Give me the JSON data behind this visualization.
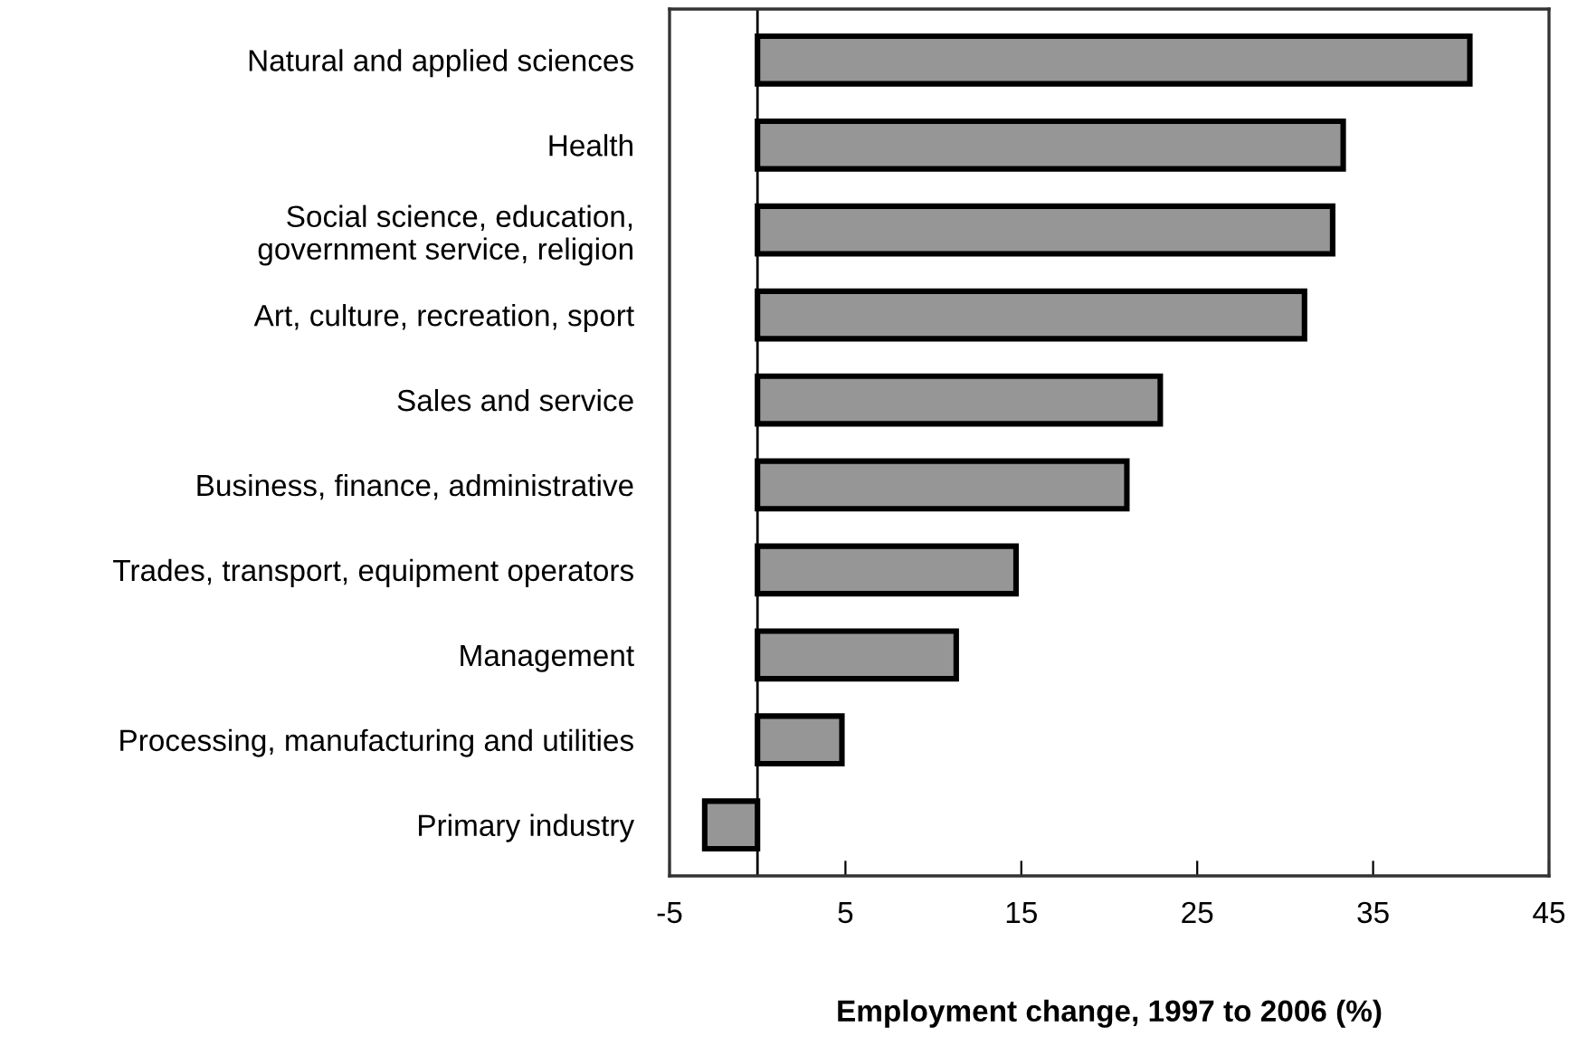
{
  "chart_data": {
    "type": "bar",
    "orientation": "horizontal",
    "xlabel": "Employment change, 1997 to 2006 (%)",
    "categories": [
      "Natural and applied sciences",
      "Health",
      "Social science, education,\ngovernment service, religion",
      "Art, culture, recreation, sport",
      "Sales and service",
      "Business, finance, administrative",
      "Trades, transport, equipment operators",
      "Management",
      "Processing, manufacturing and utilities",
      "Primary industry"
    ],
    "values": [
      40.5,
      33.3,
      32.7,
      31.1,
      22.9,
      21.0,
      14.7,
      11.3,
      4.8,
      -3.0
    ],
    "color": "#969696",
    "xlim": [
      -5,
      45
    ],
    "xticks": [
      -5,
      5,
      15,
      25,
      35,
      45
    ],
    "ref_lines": [
      {
        "axis": "x",
        "value": 0,
        "color": "#000000"
      }
    ],
    "grid": false
  }
}
